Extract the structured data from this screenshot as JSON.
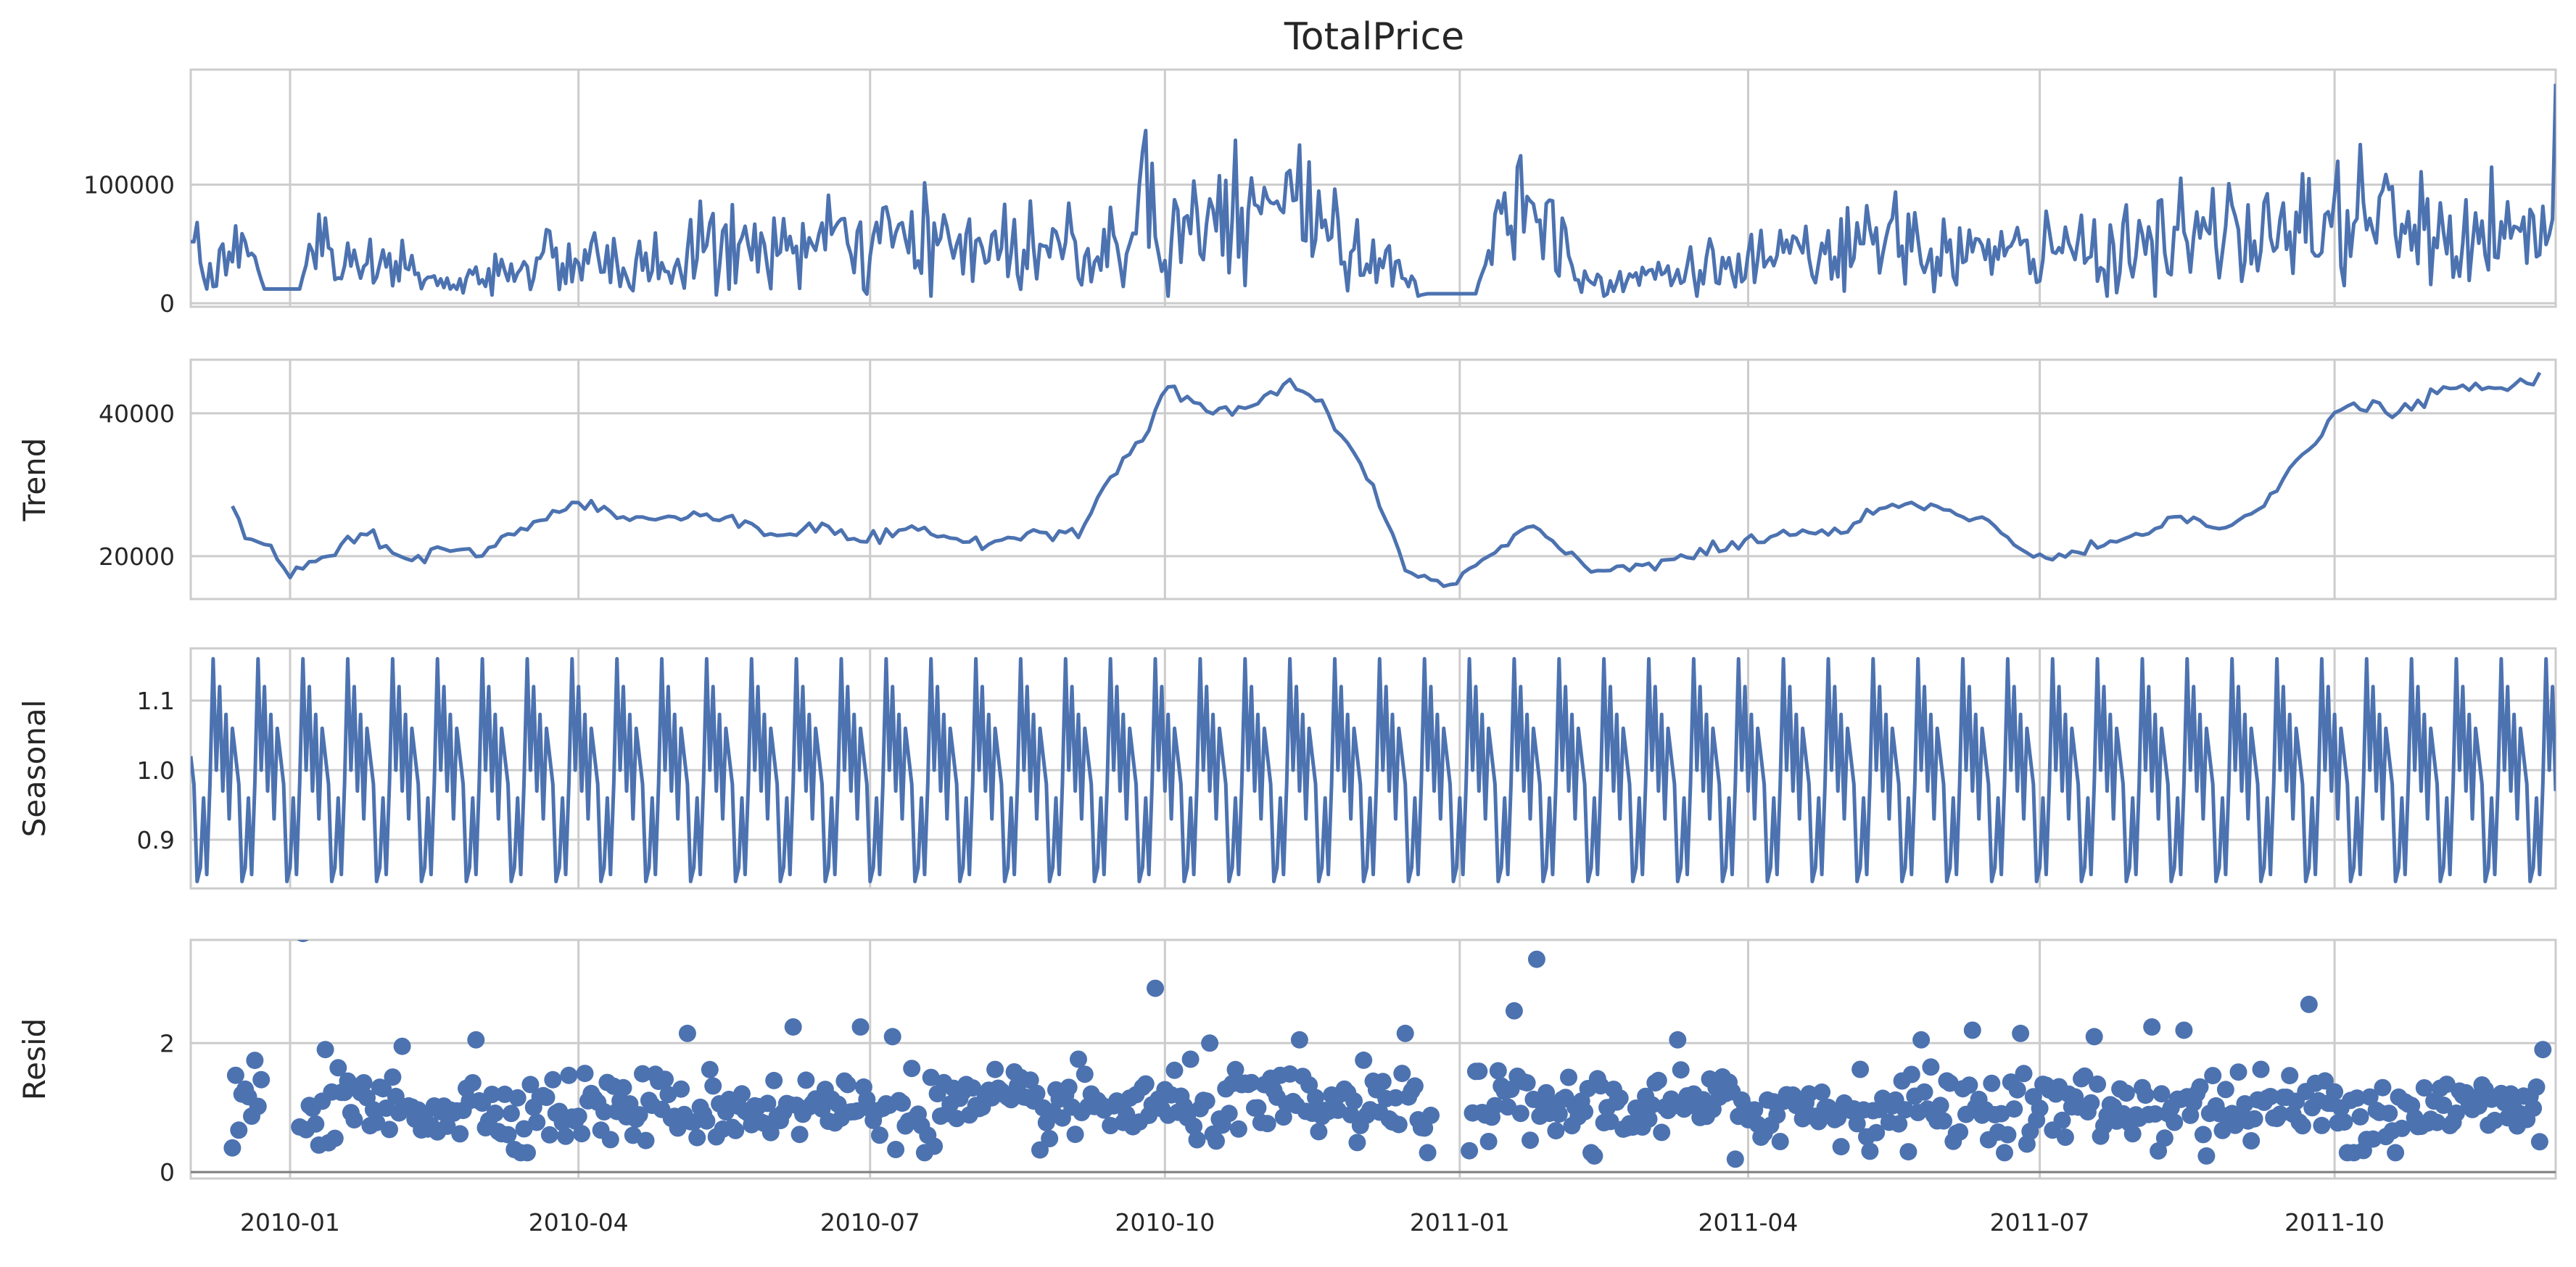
{
  "chart_data": {
    "type": "line",
    "title": "TotalPrice",
    "x_range": [
      "2009-12-01",
      "2011-12-09"
    ],
    "x_ticks": [
      "2010-01",
      "2010-04",
      "2010-07",
      "2010-10",
      "2011-01",
      "2011-04",
      "2011-07",
      "2011-10"
    ],
    "grid": true,
    "panels": [
      {
        "id": "observed",
        "ylabel": "",
        "kind": "line",
        "ylim": [
          -3000,
          197000
        ],
        "y_ticks": [
          "0",
          "100000"
        ],
        "y_tick_values": [
          0,
          100000
        ],
        "anchors": [
          {
            "x": "2009-12-01",
            "y": 52000
          },
          {
            "x": "2009-12-03",
            "y": 68000
          },
          {
            "x": "2009-12-06",
            "y": 12000
          },
          {
            "x": "2009-12-10",
            "y": 45000
          },
          {
            "x": "2009-12-14",
            "y": 35000
          },
          {
            "x": "2009-12-18",
            "y": 52000
          },
          {
            "x": "2009-12-24",
            "y": 12000
          },
          {
            "x": "2010-01-04",
            "y": 12000
          },
          {
            "x": "2010-01-10",
            "y": 75000
          },
          {
            "x": "2010-01-15",
            "y": 20000
          },
          {
            "x": "2010-02-03",
            "y": 35000
          },
          {
            "x": "2010-02-20",
            "y": 12000
          },
          {
            "x": "2010-03-15",
            "y": 35000
          },
          {
            "x": "2010-05-01",
            "y": 30000
          },
          {
            "x": "2010-05-05",
            "y": 45000
          },
          {
            "x": "2010-06-08",
            "y": 48000
          },
          {
            "x": "2010-06-24",
            "y": 50000
          },
          {
            "x": "2010-08-25",
            "y": 48000
          },
          {
            "x": "2010-09-20",
            "y": 50000
          },
          {
            "x": "2010-09-27",
            "y": 118000
          },
          {
            "x": "2010-09-29",
            "y": 42000
          },
          {
            "x": "2010-10-15",
            "y": 88000
          },
          {
            "x": "2010-11-05",
            "y": 86000
          },
          {
            "x": "2010-11-20",
            "y": 70000
          },
          {
            "x": "2010-12-08",
            "y": 30000
          },
          {
            "x": "2010-12-22",
            "y": 8000
          },
          {
            "x": "2011-01-06",
            "y": 8000
          },
          {
            "x": "2011-01-12",
            "y": 75000
          },
          {
            "x": "2011-01-22",
            "y": 90000
          },
          {
            "x": "2011-02-10",
            "y": 20000
          },
          {
            "x": "2011-04-20",
            "y": 38000
          },
          {
            "x": "2011-05-10",
            "y": 50000
          },
          {
            "x": "2011-06-20",
            "y": 40000
          },
          {
            "x": "2011-08-20",
            "y": 55000
          },
          {
            "x": "2011-09-20",
            "y": 60000
          },
          {
            "x": "2011-09-23",
            "y": 105000
          },
          {
            "x": "2011-09-25",
            "y": 40000
          },
          {
            "x": "2011-10-05",
            "y": 78000
          },
          {
            "x": "2011-11-01",
            "y": 55000
          },
          {
            "x": "2011-11-25",
            "y": 55000
          },
          {
            "x": "2011-12-07",
            "y": 58000
          },
          {
            "x": "2011-12-09",
            "y": 185000
          }
        ],
        "noise": 14000,
        "floor": 6000,
        "step_days": 1
      },
      {
        "id": "trend",
        "ylabel": "Trend",
        "kind": "line",
        "ylim": [
          14000,
          47500
        ],
        "y_ticks": [
          "20000",
          "40000"
        ],
        "y_tick_values": [
          20000,
          40000
        ],
        "anchors": [
          {
            "x": "2009-12-14",
            "y": 27000
          },
          {
            "x": "2009-12-18",
            "y": 22500
          },
          {
            "x": "2009-12-26",
            "y": 21500
          },
          {
            "x": "2010-01-01",
            "y": 17000
          },
          {
            "x": "2010-01-08",
            "y": 19000
          },
          {
            "x": "2010-01-25",
            "y": 23000
          },
          {
            "x": "2010-02-05",
            "y": 19500
          },
          {
            "x": "2010-02-18",
            "y": 21000
          },
          {
            "x": "2010-03-01",
            "y": 20500
          },
          {
            "x": "2010-03-20",
            "y": 25000
          },
          {
            "x": "2010-04-01",
            "y": 27500
          },
          {
            "x": "2010-04-15",
            "y": 25500
          },
          {
            "x": "2010-05-01",
            "y": 25500
          },
          {
            "x": "2010-05-20",
            "y": 25500
          },
          {
            "x": "2010-06-01",
            "y": 23000
          },
          {
            "x": "2010-06-15",
            "y": 24000
          },
          {
            "x": "2010-06-30",
            "y": 22000
          },
          {
            "x": "2010-07-15",
            "y": 23500
          },
          {
            "x": "2010-08-01",
            "y": 22000
          },
          {
            "x": "2010-08-20",
            "y": 23000
          },
          {
            "x": "2010-09-05",
            "y": 24000
          },
          {
            "x": "2010-09-15",
            "y": 32000
          },
          {
            "x": "2010-09-25",
            "y": 37000
          },
          {
            "x": "2010-10-03",
            "y": 44000
          },
          {
            "x": "2010-10-15",
            "y": 40000
          },
          {
            "x": "2010-10-28",
            "y": 41000
          },
          {
            "x": "2010-11-10",
            "y": 44500
          },
          {
            "x": "2010-11-22",
            "y": 39000
          },
          {
            "x": "2010-12-05",
            "y": 30000
          },
          {
            "x": "2010-12-15",
            "y": 18000
          },
          {
            "x": "2010-12-28",
            "y": 15500
          },
          {
            "x": "2011-01-10",
            "y": 20000
          },
          {
            "x": "2011-01-25",
            "y": 24000
          },
          {
            "x": "2011-02-10",
            "y": 18000
          },
          {
            "x": "2011-03-01",
            "y": 19000
          },
          {
            "x": "2011-03-20",
            "y": 20500
          },
          {
            "x": "2011-04-10",
            "y": 23000
          },
          {
            "x": "2011-05-01",
            "y": 23500
          },
          {
            "x": "2011-05-15",
            "y": 27000
          },
          {
            "x": "2011-06-01",
            "y": 26500
          },
          {
            "x": "2011-06-15",
            "y": 25000
          },
          {
            "x": "2011-06-25",
            "y": 21000
          },
          {
            "x": "2011-07-05",
            "y": 19500
          },
          {
            "x": "2011-07-25",
            "y": 22000
          },
          {
            "x": "2011-08-15",
            "y": 26000
          },
          {
            "x": "2011-08-28",
            "y": 24000
          },
          {
            "x": "2011-09-10",
            "y": 27000
          },
          {
            "x": "2011-09-20",
            "y": 34000
          },
          {
            "x": "2011-10-05",
            "y": 41000
          },
          {
            "x": "2011-10-25",
            "y": 40500
          },
          {
            "x": "2011-11-05",
            "y": 43500
          },
          {
            "x": "2011-11-20",
            "y": 43500
          },
          {
            "x": "2011-12-02",
            "y": 44000
          },
          {
            "x": "2011-12-05",
            "y": 46500
          }
        ],
        "noise": 500,
        "step_days": 2
      },
      {
        "id": "seasonal",
        "ylabel": "Seasonal",
        "kind": "line",
        "ylim": [
          0.83,
          1.175
        ],
        "y_ticks": [
          "0.9",
          "1.0",
          "1.1"
        ],
        "y_tick_values": [
          0.9,
          1.0,
          1.1
        ],
        "cycle": [
          1.02,
          0.98,
          0.84,
          0.86,
          0.96,
          0.85,
          0.98,
          1.16,
          1.0,
          1.12,
          0.97,
          1.08,
          0.93,
          1.06
        ],
        "x_start": "2009-12-01",
        "x_end": "2011-12-09"
      },
      {
        "id": "resid",
        "ylabel": "Resid",
        "kind": "scatter",
        "ylim": [
          -0.1,
          3.6
        ],
        "y_ticks": [
          "0",
          "2"
        ],
        "y_tick_values": [
          0,
          2
        ],
        "baseline": 0,
        "x_start": "2009-12-14",
        "x_end": "2011-12-05",
        "center": 1.0,
        "spread": 0.28,
        "highlights": [
          {
            "x": "2009-12-15",
            "y": 1.5
          },
          {
            "x": "2010-01-05",
            "y": 3.7
          },
          {
            "x": "2010-01-12",
            "y": 1.9
          },
          {
            "x": "2010-02-05",
            "y": 1.95
          },
          {
            "x": "2010-02-28",
            "y": 2.05
          },
          {
            "x": "2010-03-12",
            "y": 0.35
          },
          {
            "x": "2010-05-05",
            "y": 2.15
          },
          {
            "x": "2010-06-07",
            "y": 2.25
          },
          {
            "x": "2010-06-28",
            "y": 2.25
          },
          {
            "x": "2010-07-08",
            "y": 2.1
          },
          {
            "x": "2010-09-28",
            "y": 2.85
          },
          {
            "x": "2010-10-15",
            "y": 2.0
          },
          {
            "x": "2010-11-12",
            "y": 2.05
          },
          {
            "x": "2010-12-15",
            "y": 2.15
          },
          {
            "x": "2010-12-22",
            "y": 0.3
          },
          {
            "x": "2011-01-18",
            "y": 2.5
          },
          {
            "x": "2011-01-25",
            "y": 3.3
          },
          {
            "x": "2011-02-12",
            "y": 0.25
          },
          {
            "x": "2011-03-10",
            "y": 2.05
          },
          {
            "x": "2011-03-28",
            "y": 0.2
          },
          {
            "x": "2011-05-25",
            "y": 2.05
          },
          {
            "x": "2011-06-10",
            "y": 2.2
          },
          {
            "x": "2011-06-25",
            "y": 2.15
          },
          {
            "x": "2011-07-18",
            "y": 2.1
          },
          {
            "x": "2011-08-05",
            "y": 2.25
          },
          {
            "x": "2011-08-15",
            "y": 2.2
          },
          {
            "x": "2011-08-22",
            "y": 0.25
          },
          {
            "x": "2011-09-23",
            "y": 2.6
          },
          {
            "x": "2011-10-05",
            "y": 0.3
          },
          {
            "x": "2011-10-20",
            "y": 0.3
          },
          {
            "x": "2011-12-05",
            "y": 1.9
          }
        ]
      }
    ]
  }
}
